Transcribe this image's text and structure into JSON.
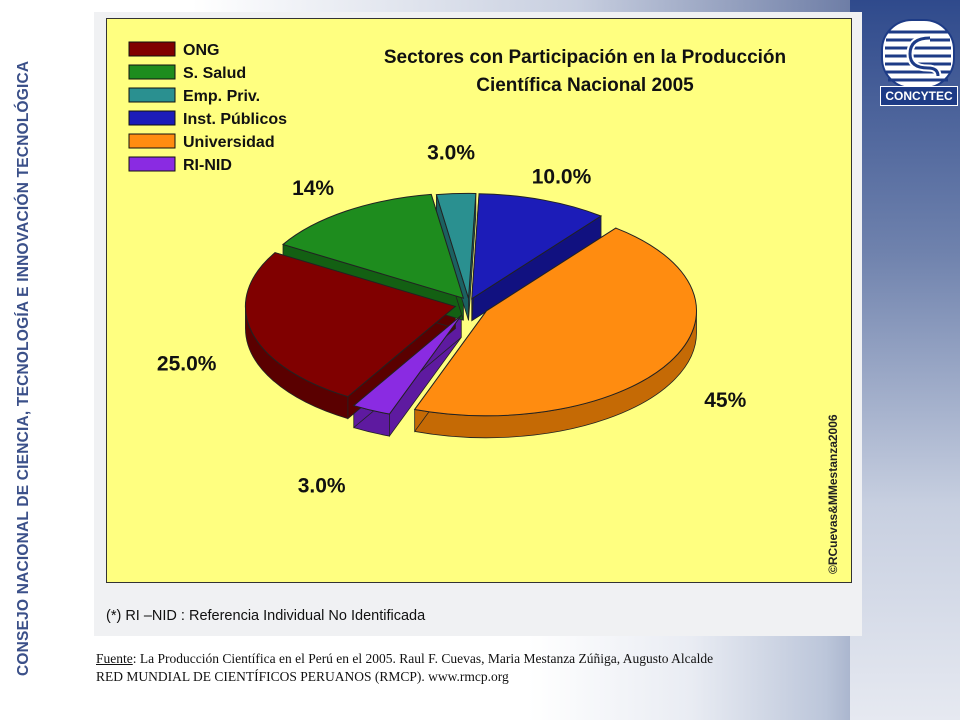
{
  "side_title": "CONSEJO NACIONAL DE CIENCIA, TECNOLOGÍA E INNOVACIÓN TECNOLÓGICA",
  "logo_text": "CONCYTEC",
  "chart_data": {
    "type": "pie",
    "title_line1": "Sectores con Participación en la Producción",
    "title_line2": "Científica Nacional 2005",
    "series": [
      {
        "name": "ONG",
        "value": 25.0,
        "label": "25.0%",
        "color": "#800000",
        "side": "#5a0000"
      },
      {
        "name": "S. Salud",
        "value": 14,
        "label": "14%",
        "color": "#1e8c1e",
        "side": "#136013"
      },
      {
        "name": "Emp. Priv.",
        "value": 3.0,
        "label": "3.0%",
        "color": "#2a9090",
        "side": "#1b6161"
      },
      {
        "name": "Inst. Públicos",
        "value": 10.0,
        "label": "10.0%",
        "color": "#1c1cb8",
        "side": "#111180"
      },
      {
        "name": "Universidad",
        "value": 45,
        "label": "45%",
        "color": "#ff8c10",
        "side": "#c56a05"
      },
      {
        "name": "RI-NID",
        "value": 3.0,
        "label": "3.0%",
        "color": "#8a2be2",
        "side": "#5e1aa0"
      }
    ],
    "legend_position": "top-left",
    "watermark": "©RCuevas&MMestanza2006"
  },
  "footnote": "(*) RI –NID : Referencia Individual No Identificada",
  "source": {
    "label": "Fuente",
    "line1": ": La Producción Científica en el Perú en el 2005. Raul F. Cuevas, Maria Mestanza Zúñiga, Augusto Alcalde",
    "line2": "RED MUNDIAL DE CIENTÍFICOS PERUANOS (RMCP). www.rmcp.org"
  }
}
